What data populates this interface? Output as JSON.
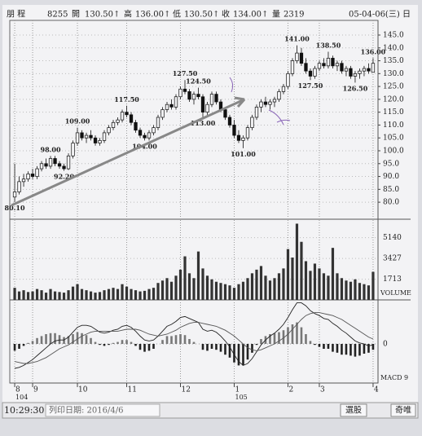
{
  "header": {
    "items": [
      "朋 程",
      "8255",
      "開",
      "130.50↑",
      "高",
      "136.00↑",
      "低",
      "130.50↑",
      "收",
      "134.00↑",
      "量",
      "2319",
      "05-04-06(三)",
      "日"
    ]
  },
  "chart_data": [
    {
      "type": "candlestick",
      "open": [
        82,
        84,
        88,
        89,
        91,
        90,
        93,
        95,
        94,
        97,
        95,
        94,
        93,
        98,
        103,
        107,
        105,
        106,
        105,
        103,
        104,
        107,
        109,
        111,
        112,
        115,
        114,
        111,
        108,
        106,
        105,
        107,
        109,
        113,
        116,
        118,
        117,
        121,
        124,
        123,
        120,
        122,
        121,
        115,
        118,
        122,
        119,
        116,
        113,
        110,
        106,
        104,
        105,
        109,
        113,
        117,
        119,
        118,
        119,
        120,
        123,
        125,
        130,
        135,
        138,
        134,
        131,
        129,
        132,
        134,
        133,
        136,
        133,
        134,
        131,
        132,
        129,
        130,
        131,
        132,
        130.5
      ],
      "high": [
        95,
        90,
        91,
        92,
        93,
        94,
        96,
        97,
        98,
        98,
        96,
        95,
        99,
        104,
        109,
        108,
        107,
        108,
        106,
        105,
        108,
        110,
        112,
        113,
        116,
        117.5,
        115,
        112,
        109,
        107,
        108,
        110,
        114,
        117,
        119,
        120,
        122,
        125,
        127.5,
        124,
        123,
        124.5,
        122,
        119,
        123,
        123,
        120,
        117,
        114,
        112,
        108,
        106,
        110,
        114,
        118,
        120,
        121,
        120,
        121,
        124,
        126,
        131,
        136,
        141,
        140,
        136,
        132,
        133,
        135,
        136,
        138.5,
        137,
        135,
        135,
        133,
        133,
        131,
        132,
        133,
        134,
        136
      ],
      "low": [
        80.1,
        83,
        86,
        88,
        89,
        89,
        92,
        93,
        93,
        94,
        93,
        92.2,
        92.5,
        97,
        102,
        104,
        103,
        104,
        102,
        102,
        103,
        106,
        108,
        110,
        111,
        113,
        110,
        107,
        105,
        104,
        104,
        106,
        108,
        112,
        115,
        116,
        116,
        120,
        122,
        119,
        118,
        120,
        113,
        114,
        117,
        118,
        115,
        112,
        109,
        105,
        103,
        101,
        104,
        108,
        112,
        115,
        117,
        116,
        117,
        119,
        122,
        124,
        129,
        134,
        133,
        130,
        127.5,
        128,
        131,
        132,
        132,
        132,
        131,
        130,
        129,
        128,
        126.5,
        128,
        129,
        130,
        130.5
      ],
      "close": [
        84,
        88,
        89,
        91,
        90,
        93,
        95,
        94,
        97,
        95,
        94,
        93,
        98,
        103,
        107,
        105,
        106,
        105,
        103,
        104,
        107,
        109,
        111,
        112,
        115,
        114,
        111,
        108,
        106,
        105,
        107,
        109,
        113,
        116,
        118,
        117,
        121,
        124,
        123,
        120,
        122,
        121,
        115,
        118,
        122,
        119,
        116,
        113,
        110,
        106,
        104,
        105,
        109,
        113,
        117,
        119,
        118,
        119,
        120,
        123,
        125,
        130,
        135,
        138,
        134,
        131,
        129,
        132,
        134,
        133,
        136,
        133,
        134,
        131,
        132,
        129,
        130,
        131,
        132,
        131,
        134
      ],
      "ylim": [
        73.7,
        150.7
      ],
      "yticks": [
        {
          "value": 80,
          "label": "80.0"
        },
        {
          "value": 85,
          "label": "85.0"
        },
        {
          "value": 90,
          "label": "90.0"
        },
        {
          "value": 95,
          "label": "95.0"
        },
        {
          "value": 100,
          "label": "100.0"
        },
        {
          "value": 105,
          "label": "105.0"
        },
        {
          "value": 110,
          "label": "110.0"
        },
        {
          "value": 115,
          "label": "115.0"
        },
        {
          "value": 120,
          "label": "120.0"
        },
        {
          "value": 125,
          "label": "125.0"
        },
        {
          "value": 130,
          "label": "130.0"
        },
        {
          "value": 135,
          "label": "135.0"
        },
        {
          "value": 140,
          "label": "140.0"
        },
        {
          "value": 145,
          "label": "145.0"
        }
      ],
      "xlim": [
        -1.1,
        81.1
      ],
      "xticks": [
        {
          "value": 0,
          "label": "8"
        },
        {
          "value": 4,
          "label": "9"
        },
        {
          "value": 14,
          "label": "10"
        },
        {
          "value": 25,
          "label": "11"
        },
        {
          "value": 37,
          "label": "12"
        },
        {
          "value": 49,
          "label": "1"
        },
        {
          "value": 61,
          "label": "2"
        },
        {
          "value": 68,
          "label": "3"
        },
        {
          "value": 80,
          "label": "4"
        }
      ],
      "x_year_labels": [
        {
          "value": 0,
          "label": "104"
        },
        {
          "value": 49,
          "label": "105"
        }
      ],
      "annotations": [
        {
          "x": 0,
          "value": 80.1,
          "label": "80.10"
        },
        {
          "x": 8,
          "value": 98,
          "label": "98.00"
        },
        {
          "x": 11,
          "value": 92.2,
          "label": "92.20"
        },
        {
          "x": 14,
          "value": 109,
          "label": "109.00"
        },
        {
          "x": 25,
          "value": 117.5,
          "label": "117.50"
        },
        {
          "x": 29,
          "value": 104,
          "label": "104.00"
        },
        {
          "x": 38,
          "value": 127.5,
          "label": "127.50"
        },
        {
          "x": 41,
          "value": 124.5,
          "label": "124.50"
        },
        {
          "x": 42,
          "value": 113,
          "label": "113.00"
        },
        {
          "x": 51,
          "value": 101,
          "label": "101.00"
        },
        {
          "x": 63,
          "value": 141,
          "label": "141.00"
        },
        {
          "x": 66,
          "value": 127.5,
          "label": "127.50"
        },
        {
          "x": 70,
          "value": 138.5,
          "label": "138.50"
        },
        {
          "x": 76,
          "value": 126.5,
          "label": "126.50"
        },
        {
          "x": 80,
          "value": 136,
          "label": "136.00"
        }
      ],
      "grid": true
    },
    {
      "type": "bar",
      "label": "VOLUME",
      "color": "#333",
      "values": [
        1000,
        700,
        800,
        650,
        700,
        900,
        800,
        600,
        900,
        700,
        650,
        600,
        800,
        1100,
        1300,
        900,
        800,
        700,
        600,
        650,
        800,
        900,
        1000,
        900,
        1300,
        1100,
        900,
        800,
        700,
        750,
        900,
        1000,
        1400,
        1600,
        1800,
        1500,
        2000,
        2500,
        3600,
        2200,
        1800,
        4000,
        2600,
        2000,
        1700,
        1500,
        1400,
        1300,
        1200,
        1000,
        1300,
        1500,
        1800,
        2200,
        2500,
        2800,
        2000,
        1600,
        1800,
        2200,
        2600,
        4200,
        3500,
        6300,
        4800,
        3200,
        2400,
        3000,
        2600,
        2200,
        2000,
        4300,
        2200,
        1800,
        1600,
        1500,
        1700,
        1400,
        1300,
        1200,
        2319
      ],
      "ylim": [
        0,
        6600
      ],
      "yticks": [
        1713,
        3427,
        5140
      ]
    },
    {
      "type": "macd",
      "label": "MACD 9",
      "series": [
        {
          "color": "#222",
          "values": [
            -2.5,
            -2.4,
            -2.2,
            -1.9,
            -1.6,
            -1.2,
            -0.8,
            -0.4,
            0,
            0.3,
            0.4,
            0.4,
            0.7,
            1.2,
            1.7,
            1.9,
            1.9,
            1.8,
            1.5,
            1.2,
            1.1,
            1.2,
            1.4,
            1.5,
            1.8,
            1.9,
            1.7,
            1.3,
            0.8,
            0.4,
            0.3,
            0.4,
            0.8,
            1.3,
            1.8,
            2.0,
            2.3,
            2.7,
            2.8,
            2.6,
            2.4,
            2.2,
            1.5,
            1.3,
            1.4,
            1.2,
            0.8,
            0.3,
            -0.3,
            -1.1,
            -1.8,
            -2.2,
            -2.0,
            -1.5,
            -0.8,
            -0.1,
            0.4,
            0.8,
            1.1,
            1.5,
            2.0,
            2.7,
            3.5,
            4.2,
            4.2,
            3.9,
            3.4,
            3.1,
            2.9,
            2.6,
            2.5,
            2.1,
            1.8,
            1.4,
            1.1,
            0.7,
            0.3,
            0.1,
            0,
            -0.2,
            -0.1
          ]
        },
        {
          "color": "#555",
          "values": [
            -1.8,
            -1.9,
            -2.0,
            -2.0,
            -1.9,
            -1.8,
            -1.6,
            -1.4,
            -1.1,
            -0.8,
            -0.5,
            -0.3,
            -0.1,
            0.2,
            0.5,
            0.8,
            1.0,
            1.2,
            1.3,
            1.3,
            1.3,
            1.3,
            1.3,
            1.3,
            1.4,
            1.5,
            1.5,
            1.5,
            1.4,
            1.2,
            1.0,
            0.9,
            0.8,
            0.9,
            1.0,
            1.2,
            1.4,
            1.7,
            1.9,
            2.1,
            2.2,
            2.2,
            2.1,
            2.0,
            1.9,
            1.8,
            1.6,
            1.4,
            1.1,
            0.8,
            0.4,
            0,
            -0.4,
            -0.6,
            -0.7,
            -0.6,
            -0.4,
            -0.2,
            0,
            0.3,
            0.6,
            1.0,
            1.5,
            2.0,
            2.5,
            2.9,
            3.1,
            3.2,
            3.2,
            3.1,
            3.0,
            2.9,
            2.7,
            2.5,
            2.2,
            1.9,
            1.6,
            1.3,
            1.0,
            0.7,
            0.5
          ]
        }
      ],
      "histogram": [
        -0.7,
        -0.5,
        -0.2,
        0.1,
        0.3,
        0.6,
        0.8,
        1.0,
        1.1,
        1.1,
        0.9,
        0.7,
        0.8,
        1.0,
        1.2,
        1.1,
        0.9,
        0.6,
        0.2,
        -0.1,
        -0.2,
        -0.1,
        0.1,
        0.2,
        0.4,
        0.4,
        0.2,
        -0.2,
        -0.6,
        -0.8,
        -0.7,
        -0.5,
        0,
        0.4,
        0.8,
        0.8,
        0.9,
        1.0,
        0.9,
        0.5,
        0.2,
        0,
        -0.6,
        -0.7,
        -0.5,
        -0.6,
        -0.8,
        -1.1,
        -1.4,
        -1.9,
        -2.2,
        -2.2,
        -1.6,
        -0.9,
        -0.1,
        0.5,
        0.8,
        1.0,
        1.1,
        1.2,
        1.4,
        1.7,
        2.0,
        2.2,
        1.7,
        1.0,
        0.3,
        -0.1,
        -0.3,
        -0.5,
        -0.5,
        -0.8,
        -0.9,
        -1.1,
        -1.1,
        -1.2,
        -1.3,
        -1.2,
        -1.0,
        -0.9,
        -0.6
      ],
      "ylim": [
        -4,
        4.5
      ],
      "yticks": [
        0
      ]
    }
  ],
  "footer": {
    "time": "10:29:30",
    "print_date": "列印日期: 2016/4/6",
    "buttons": [
      "選股",
      "奇唯"
    ]
  }
}
